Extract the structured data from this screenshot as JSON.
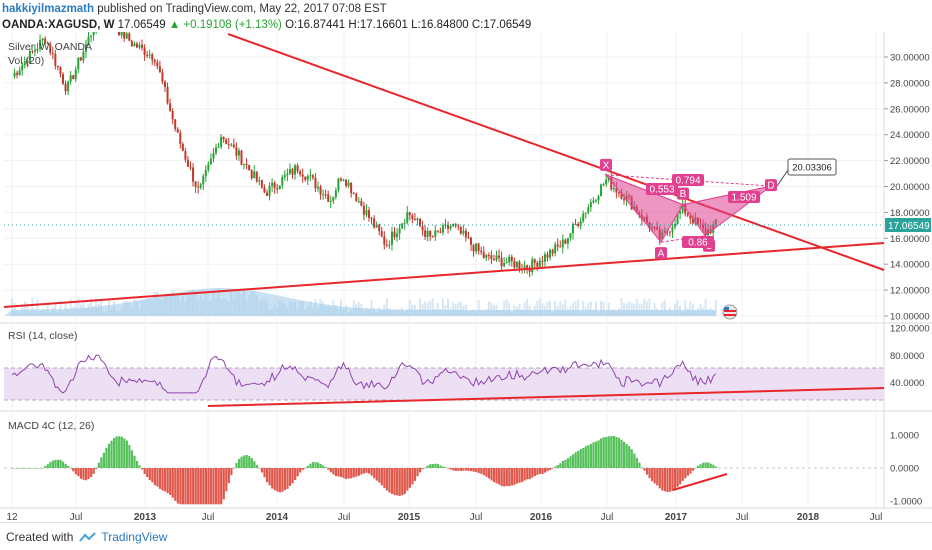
{
  "header": {
    "author": "hakkiyilmazmath",
    "published": "published on TradingView.com, May 22, 2017 07:08 EST",
    "symbol": "OANDA:XAGUSD, W",
    "last": "17.06549",
    "change": "▲ +0.19108 (+1.13%)",
    "open": "O:16.87441",
    "high": "H:17.16601",
    "low": "L:16.84800",
    "close": "C:17.06549"
  },
  "main_pane": {
    "legend_symbol": "Silver, W, OANDA",
    "legend_vol": "Vol (20)",
    "price_axis": [
      "30.00000",
      "28.00000",
      "26.00000",
      "24.00000",
      "22.00000",
      "20.00000",
      "18.00000",
      "16.00000",
      "14.00000",
      "12.00000",
      "10.00000"
    ],
    "current_price_label": "17.06549",
    "target_label": "20.03306",
    "pattern_labels": {
      "x": "X",
      "a": "A",
      "b": "B",
      "c": "C",
      "d": "D",
      "r1": "0.794",
      "r2": "0.553",
      "r3": "1.509",
      "r4": "0.86"
    }
  },
  "rsi_pane": {
    "title": "RSI (14, close)",
    "axis": [
      "120.0000",
      "80.0000",
      "40.0000"
    ]
  },
  "macd_pane": {
    "title": "MACD 4C (12, 26)",
    "axis": [
      "1.0000",
      "0.0000",
      "-1.0000"
    ]
  },
  "time_axis": [
    "12",
    "Jul",
    "2013",
    "Jul",
    "2014",
    "Jul",
    "2015",
    "Jul",
    "2016",
    "Jul",
    "2017",
    "Jul",
    "2018",
    "Jul"
  ],
  "footer": {
    "created": "Created with",
    "brand": "TradingView"
  },
  "colors": {
    "up": "#27a234",
    "down": "#c0392b",
    "trendline": "#e8262b",
    "pattern": "#e0408f",
    "rsi": "#8e44ad",
    "rsi_band": "#ede0f5",
    "vol": "#9cc8e8",
    "macd_pos": "#56c15a",
    "macd_neg": "#e0584c"
  },
  "chart_data": {
    "type": "candlestick",
    "symbol": "OANDA:XAGUSD",
    "interval": "W",
    "close_path": [
      {
        "t": "2012-01",
        "y": 28.5
      },
      {
        "t": "2012-04",
        "y": 31.5
      },
      {
        "t": "2012-06",
        "y": 27.5
      },
      {
        "t": "2012-09",
        "y": 33.5
      },
      {
        "t": "2012-12",
        "y": 31.0
      },
      {
        "t": "2013-02",
        "y": 30.0
      },
      {
        "t": "2013-04",
        "y": 24.0
      },
      {
        "t": "2013-06",
        "y": 19.5
      },
      {
        "t": "2013-08",
        "y": 24.0
      },
      {
        "t": "2013-10",
        "y": 22.0
      },
      {
        "t": "2013-12",
        "y": 19.5
      },
      {
        "t": "2014-03",
        "y": 21.5
      },
      {
        "t": "2014-06",
        "y": 19.0
      },
      {
        "t": "2014-07",
        "y": 21.0
      },
      {
        "t": "2014-11",
        "y": 15.5
      },
      {
        "t": "2015-01",
        "y": 18.0
      },
      {
        "t": "2015-03",
        "y": 16.0
      },
      {
        "t": "2015-05",
        "y": 17.0
      },
      {
        "t": "2015-08",
        "y": 14.5
      },
      {
        "t": "2015-11",
        "y": 14.0
      },
      {
        "t": "2015-12",
        "y": 13.8
      },
      {
        "t": "2016-03",
        "y": 15.5
      },
      {
        "t": "2016-07",
        "y": 20.5
      },
      {
        "t": "2016-09",
        "y": 19.0
      },
      {
        "t": "2016-12",
        "y": 15.9
      },
      {
        "t": "2017-02",
        "y": 18.3
      },
      {
        "t": "2017-04",
        "y": 16.4
      },
      {
        "t": "2017-05",
        "y": 17.06549
      }
    ],
    "pattern": {
      "X": {
        "t": "2016-07",
        "y": 20.9
      },
      "A": {
        "t": "2016-12",
        "y": 15.7
      },
      "B": {
        "t": "2017-02",
        "y": 18.6
      },
      "C": {
        "t": "2017-04",
        "y": 16.2
      },
      "D": {
        "t": "2017-10",
        "y": 20.03306
      }
    }
  }
}
